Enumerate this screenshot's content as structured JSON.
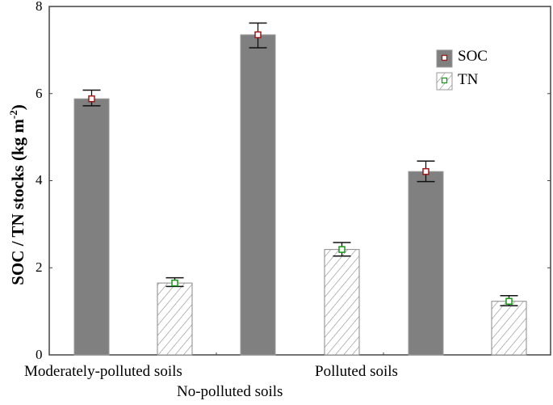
{
  "chart_data": {
    "type": "bar",
    "title": "",
    "xlabel": "",
    "ylabel": "SOC / TN stocks  (kg m-2)",
    "ylim": [
      0,
      8
    ],
    "yticks": [
      0,
      2,
      4,
      6,
      8
    ],
    "grid": false,
    "legend_position": "upper right",
    "categories": [
      "Moderately-polluted soils",
      "No-polluted soils",
      "Polluted soils"
    ],
    "series": [
      {
        "name": "SOC",
        "values": [
          5.88,
          7.35,
          4.21
        ],
        "error_low": [
          5.72,
          7.05,
          3.98
        ],
        "error_high": [
          6.08,
          7.62,
          4.45
        ],
        "fill": "#808080",
        "pattern": "solid",
        "marker_color": "#a01818"
      },
      {
        "name": "TN",
        "values": [
          1.65,
          2.42,
          1.23
        ],
        "error_low": [
          1.57,
          2.27,
          1.13
        ],
        "error_high": [
          1.77,
          2.58,
          1.36
        ],
        "fill": "#ffffff",
        "pattern": "hatch",
        "marker_color": "#1a9a1a"
      }
    ]
  },
  "axis": {
    "ylabel_main": "SOC / TN stocks  (kg m",
    "ylabel_sup": "-2",
    "ylabel_end": ")",
    "ticks": [
      "0",
      "2",
      "4",
      "6",
      "8"
    ]
  },
  "legend": {
    "soc": "SOC",
    "tn": "TN"
  },
  "categories": {
    "c1": "Moderately-polluted soils",
    "c2": "No-polluted soils",
    "c3": "Polluted soils"
  }
}
